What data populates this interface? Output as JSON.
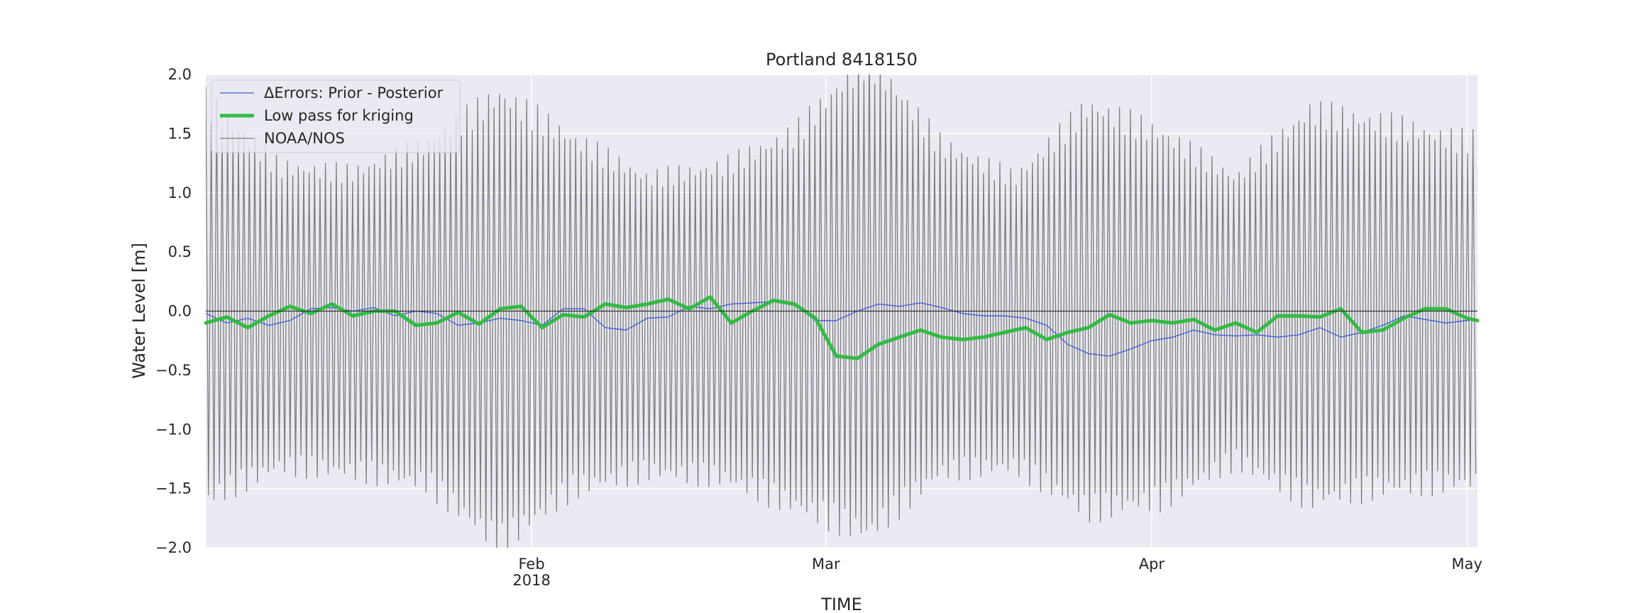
{
  "chart_data": {
    "type": "line",
    "title": "Portland  8418150",
    "xlabel": "TIME",
    "ylabel": "Water Level [m]",
    "xlim": [
      "2018-01-01",
      "2018-05-02"
    ],
    "ylim": [
      -2.0,
      2.0
    ],
    "yticks": [
      {
        "value": 2.0,
        "label": "2.0"
      },
      {
        "value": 1.5,
        "label": "1.5"
      },
      {
        "value": 1.0,
        "label": "1.0"
      },
      {
        "value": 0.5,
        "label": "0.5"
      },
      {
        "value": 0.0,
        "label": "0.0"
      },
      {
        "value": -0.5,
        "label": "−0.5"
      },
      {
        "value": -1.0,
        "label": "−1.0"
      },
      {
        "value": -1.5,
        "label": "−1.5"
      },
      {
        "value": -2.0,
        "label": "−2.0"
      }
    ],
    "xticks": [
      {
        "date": "2018-02-01",
        "label": "Feb",
        "sublabel": "2018"
      },
      {
        "date": "2018-03-01",
        "label": "Mar",
        "sublabel": ""
      },
      {
        "date": "2018-04-01",
        "label": "Apr",
        "sublabel": ""
      },
      {
        "date": "2018-05-01",
        "label": "May",
        "sublabel": ""
      }
    ],
    "grid": true,
    "zero_line": true,
    "legend_position": "top-left",
    "colors": {
      "plot_background": "#eaeaf2",
      "grid": "#ffffff",
      "text": "#262626",
      "zero_line": "#333333"
    },
    "series": [
      {
        "name": "ΔErrors: Prior - Posterior",
        "color": "#3b5bdb",
        "x": [
          "2018-01-01",
          "2018-01-03",
          "2018-01-05",
          "2018-01-07",
          "2018-01-09",
          "2018-01-11",
          "2018-01-13",
          "2018-01-15",
          "2018-01-17",
          "2018-01-19",
          "2018-01-21",
          "2018-01-23",
          "2018-01-25",
          "2018-01-27",
          "2018-01-29",
          "2018-01-31",
          "2018-02-02",
          "2018-02-04",
          "2018-02-06",
          "2018-02-08",
          "2018-02-10",
          "2018-02-12",
          "2018-02-14",
          "2018-02-16",
          "2018-02-18",
          "2018-02-20",
          "2018-02-22",
          "2018-02-24",
          "2018-02-26",
          "2018-02-28",
          "2018-03-02",
          "2018-03-04",
          "2018-03-06",
          "2018-03-08",
          "2018-03-10",
          "2018-03-12",
          "2018-03-14",
          "2018-03-16",
          "2018-03-18",
          "2018-03-20",
          "2018-03-22",
          "2018-03-24",
          "2018-03-26",
          "2018-03-28",
          "2018-03-30",
          "2018-04-01",
          "2018-04-03",
          "2018-04-05",
          "2018-04-07",
          "2018-04-09",
          "2018-04-11",
          "2018-04-13",
          "2018-04-15",
          "2018-04-17",
          "2018-04-19",
          "2018-04-21",
          "2018-04-23",
          "2018-04-25",
          "2018-04-27",
          "2018-04-29",
          "2018-05-01",
          "2018-05-02"
        ],
        "values": [
          -0.02,
          -0.1,
          -0.06,
          -0.12,
          -0.08,
          0.02,
          0.03,
          0.0,
          0.03,
          -0.04,
          0.0,
          -0.02,
          -0.12,
          -0.1,
          -0.06,
          -0.08,
          -0.12,
          0.02,
          0.02,
          -0.14,
          -0.16,
          -0.06,
          -0.05,
          0.04,
          0.02,
          0.06,
          0.07,
          0.08,
          0.06,
          -0.08,
          -0.08,
          0.0,
          0.06,
          0.04,
          0.07,
          0.03,
          -0.02,
          -0.04,
          -0.04,
          -0.06,
          -0.12,
          -0.28,
          -0.36,
          -0.38,
          -0.32,
          -0.25,
          -0.22,
          -0.16,
          -0.2,
          -0.21,
          -0.2,
          -0.22,
          -0.2,
          -0.14,
          -0.22,
          -0.18,
          -0.12,
          -0.04,
          -0.07,
          -0.1,
          -0.08,
          -0.07
        ]
      },
      {
        "name": "Low pass for kriging",
        "color": "#33bb44",
        "x": [
          "2018-01-01",
          "2018-01-03",
          "2018-01-05",
          "2018-01-07",
          "2018-01-09",
          "2018-01-11",
          "2018-01-13",
          "2018-01-15",
          "2018-01-17",
          "2018-01-19",
          "2018-01-21",
          "2018-01-23",
          "2018-01-25",
          "2018-01-27",
          "2018-01-29",
          "2018-01-31",
          "2018-02-02",
          "2018-02-04",
          "2018-02-06",
          "2018-02-08",
          "2018-02-10",
          "2018-02-12",
          "2018-02-14",
          "2018-02-16",
          "2018-02-18",
          "2018-02-20",
          "2018-02-22",
          "2018-02-24",
          "2018-02-26",
          "2018-02-28",
          "2018-03-02",
          "2018-03-04",
          "2018-03-06",
          "2018-03-08",
          "2018-03-10",
          "2018-03-12",
          "2018-03-14",
          "2018-03-16",
          "2018-03-18",
          "2018-03-20",
          "2018-03-22",
          "2018-03-24",
          "2018-03-26",
          "2018-03-28",
          "2018-03-30",
          "2018-04-01",
          "2018-04-03",
          "2018-04-05",
          "2018-04-07",
          "2018-04-09",
          "2018-04-11",
          "2018-04-13",
          "2018-04-15",
          "2018-04-17",
          "2018-04-19",
          "2018-04-21",
          "2018-04-23",
          "2018-04-25",
          "2018-04-27",
          "2018-04-29",
          "2018-05-01",
          "2018-05-02"
        ],
        "values": [
          -0.1,
          -0.05,
          -0.14,
          -0.04,
          0.04,
          -0.02,
          0.06,
          -0.04,
          0.0,
          0.0,
          -0.12,
          -0.1,
          -0.01,
          -0.11,
          0.02,
          0.04,
          -0.14,
          -0.03,
          -0.05,
          0.06,
          0.03,
          0.06,
          0.1,
          0.02,
          0.12,
          -0.1,
          0.0,
          0.09,
          0.06,
          -0.06,
          -0.38,
          -0.4,
          -0.28,
          -0.22,
          -0.16,
          -0.22,
          -0.24,
          -0.22,
          -0.18,
          -0.14,
          -0.24,
          -0.18,
          -0.14,
          -0.03,
          -0.1,
          -0.08,
          -0.1,
          -0.07,
          -0.16,
          -0.1,
          -0.18,
          -0.04,
          -0.04,
          -0.05,
          0.02,
          -0.18,
          -0.16,
          -0.06,
          0.02,
          0.02,
          -0.06,
          -0.08
        ]
      },
      {
        "name": "NOAA/NOS",
        "color": "#7f7f7f",
        "x": [
          "2018-01-01",
          "2018-01-08",
          "2018-01-15",
          "2018-01-22",
          "2018-01-29",
          "2018-02-05",
          "2018-02-12",
          "2018-02-19",
          "2018-02-26",
          "2018-03-05",
          "2018-03-12",
          "2018-03-19",
          "2018-03-26",
          "2018-04-02",
          "2018-04-09",
          "2018-04-16",
          "2018-04-23",
          "2018-04-30"
        ],
        "values": [
          1.9,
          1.3,
          1.25,
          1.5,
          1.95,
          1.55,
          1.2,
          1.3,
          1.6,
          2.3,
          1.5,
          1.2,
          1.85,
          1.6,
          1.2,
          1.8,
          1.7,
          1.55
        ],
        "values_low": [
          -1.7,
          -1.4,
          -1.45,
          -1.55,
          -2.1,
          -1.6,
          -1.45,
          -1.5,
          -1.75,
          -2.0,
          -1.45,
          -1.4,
          -1.8,
          -1.7,
          -1.35,
          -1.7,
          -1.6,
          -1.55
        ]
      }
    ]
  }
}
